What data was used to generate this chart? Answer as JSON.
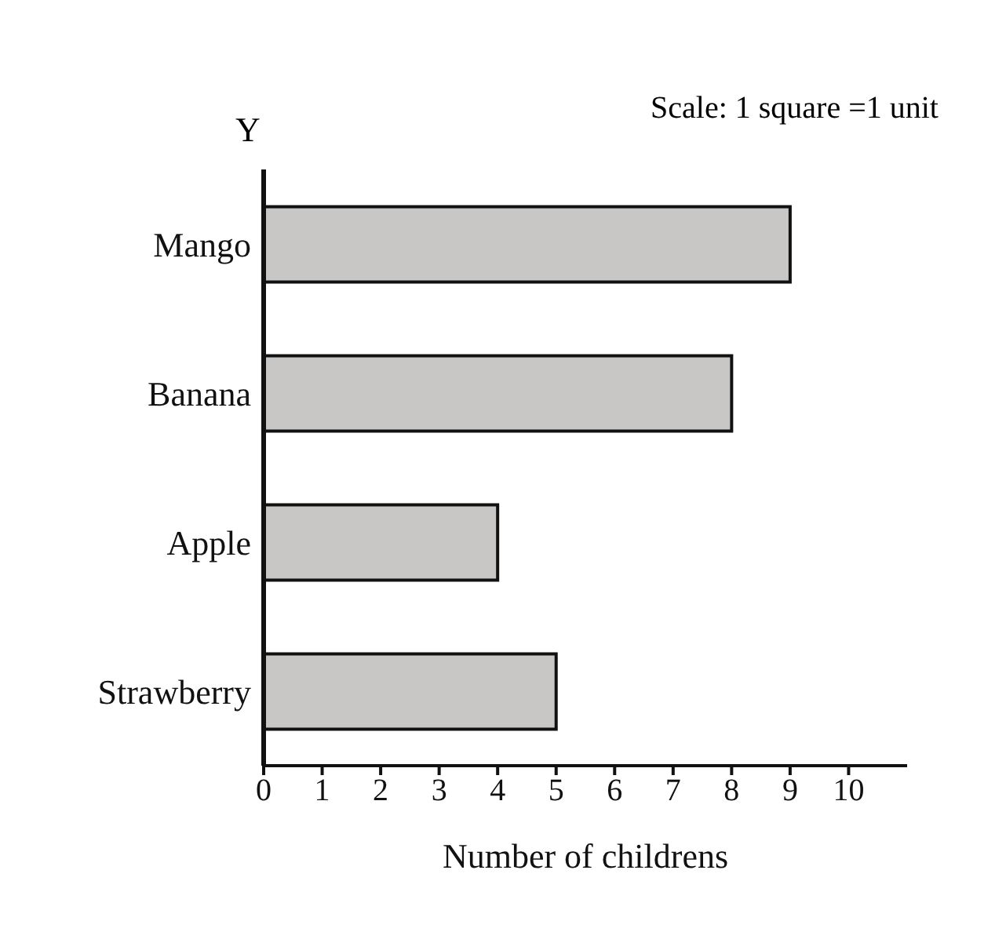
{
  "chart_data": {
    "type": "bar",
    "orientation": "horizontal",
    "categories": [
      "Mango",
      "Banana",
      "Apple",
      "Strawberry"
    ],
    "values": [
      9,
      8,
      4,
      5
    ],
    "color": "#c9c6c6",
    "xlim": [
      0,
      11
    ],
    "xticks": [
      0,
      1,
      2,
      3,
      4,
      5,
      6,
      7,
      8,
      9,
      10
    ],
    "xlabel": "Number of childrens",
    "ylabel": "Y",
    "annotations": [
      "Scale: 1 square =1 unit"
    ],
    "legend": false
  }
}
